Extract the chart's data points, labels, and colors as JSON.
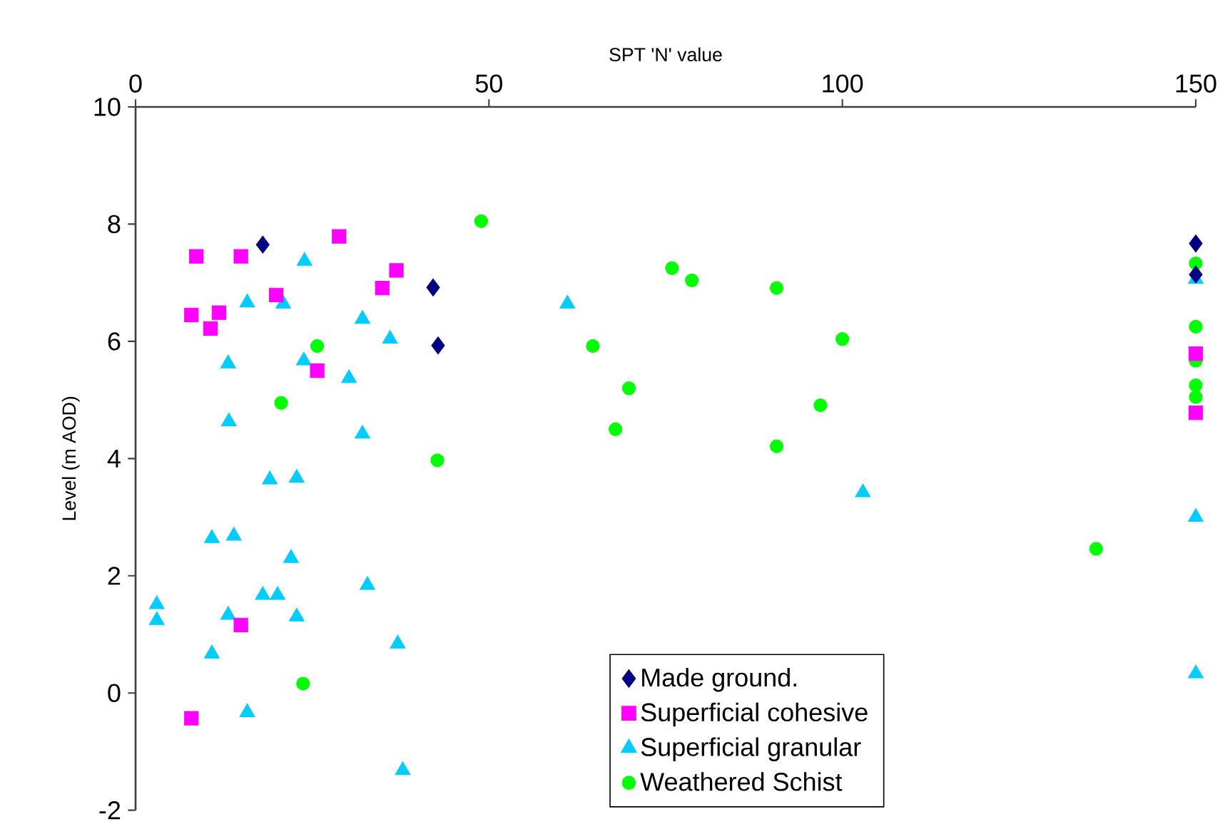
{
  "chart_data": {
    "type": "scatter",
    "xlabel": "SPT 'N' value",
    "ylabel": "Level (m AOD)",
    "xlim": [
      0,
      150
    ],
    "ylim": [
      -2,
      10
    ],
    "xticks": [
      0,
      50,
      100,
      150
    ],
    "yticks": [
      -2,
      0,
      2,
      4,
      6,
      8,
      10
    ],
    "legend": "bottom",
    "grid": false,
    "series": [
      {
        "name": "Made ground.",
        "color": "#000080",
        "marker": "diamond",
        "x": [
          18.0,
          42.1,
          42.8,
          150,
          150
        ],
        "values": [
          7.65,
          6.92,
          5.93,
          7.67,
          7.14
        ]
      },
      {
        "name": "Superficial cohesive",
        "color": "#ff00ff",
        "marker": "square",
        "x": [
          8.6,
          14.9,
          7.9,
          11.8,
          10.6,
          19.9,
          28.8,
          34.9,
          36.9,
          25.7,
          14.9,
          7.9,
          150,
          150
        ],
        "values": [
          7.45,
          7.45,
          6.45,
          6.49,
          6.22,
          6.79,
          7.79,
          6.91,
          7.21,
          5.5,
          1.16,
          -0.43,
          5.79,
          4.78
        ]
      },
      {
        "name": "Superficial granular",
        "color": "#00ccff",
        "marker": "triangle",
        "x": [
          23.9,
          15.8,
          20.9,
          32.1,
          36.0,
          13.1,
          23.8,
          30.2,
          13.2,
          32.1,
          19.0,
          22.8,
          61.1,
          102.9,
          150,
          150,
          150,
          10.8,
          13.9,
          22.0,
          32.8,
          18.0,
          20.1,
          3.0,
          3.0,
          13.1,
          22.8,
          37.1,
          10.8,
          15.8,
          37.8
        ],
        "values": [
          7.37,
          6.66,
          6.64,
          6.38,
          6.04,
          5.62,
          5.67,
          5.37,
          4.63,
          4.42,
          3.64,
          3.67,
          6.64,
          3.42,
          7.06,
          3.0,
          0.33,
          2.64,
          2.68,
          2.3,
          1.84,
          1.67,
          1.67,
          1.51,
          1.24,
          1.33,
          1.3,
          0.84,
          0.67,
          -0.33,
          -1.32
        ]
      },
      {
        "name": "Weathered Schist",
        "color": "#00ff00",
        "marker": "circle",
        "x": [
          25.7,
          20.6,
          42.7,
          48.9,
          75.9,
          78.7,
          90.7,
          64.7,
          69.8,
          67.9,
          90.7,
          96.9,
          100.0,
          135.9,
          23.7,
          150,
          150,
          150,
          150,
          150
        ],
        "values": [
          5.92,
          4.95,
          3.97,
          8.05,
          7.25,
          7.04,
          6.91,
          5.92,
          5.2,
          4.5,
          4.21,
          4.91,
          6.04,
          2.46,
          0.16,
          7.33,
          6.25,
          5.67,
          5.25,
          5.05
        ]
      }
    ]
  }
}
